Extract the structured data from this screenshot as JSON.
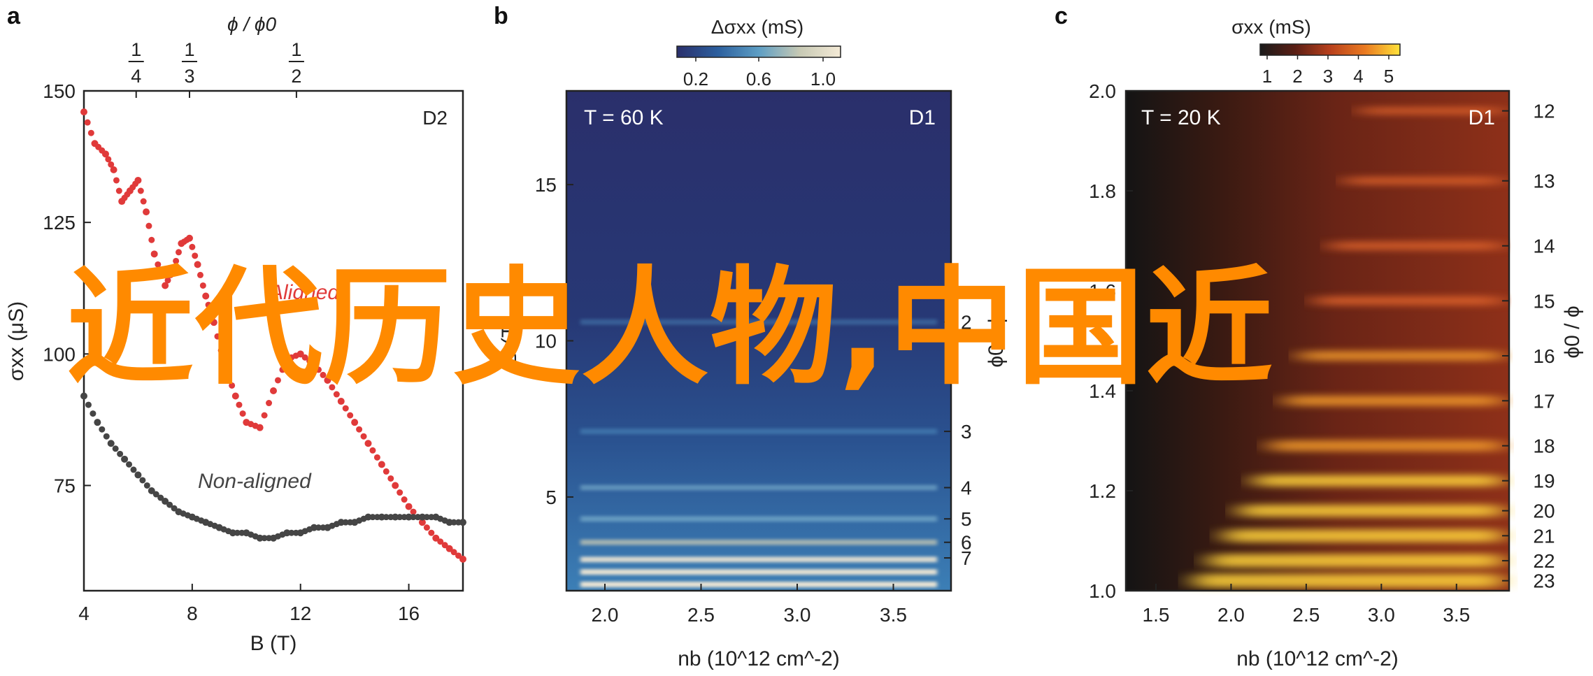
{
  "overlay_text": "近代历史人物,中国近",
  "chart_data": [
    {
      "panel": "a",
      "type": "line",
      "badge": "D2",
      "xlabel": "B (T)",
      "ylabel": "σxx (μS)",
      "top_axis_label": "ϕ / ϕ0",
      "top_ticks": [
        {
          "x": 5.93,
          "num": "1",
          "den": "4"
        },
        {
          "x": 7.9,
          "num": "1",
          "den": "3"
        },
        {
          "x": 11.85,
          "num": "1",
          "den": "2"
        }
      ],
      "xlim": [
        4,
        18
      ],
      "ylim": [
        55,
        150
      ],
      "xticks": [
        4,
        8,
        12,
        16
      ],
      "yticks": [
        75,
        100,
        125,
        150
      ],
      "series": [
        {
          "name": "Aligned",
          "color": "#e03a3a",
          "x": [
            4.0,
            4.4,
            4.8,
            5.1,
            5.4,
            5.7,
            6.0,
            6.3,
            6.6,
            7.0,
            7.3,
            7.6,
            7.9,
            8.2,
            8.5,
            8.8,
            9.2,
            9.6,
            10.0,
            10.5,
            11.0,
            11.5,
            12.0,
            12.5,
            13.0,
            13.5,
            14.0,
            14.5,
            15.0,
            15.5,
            16.0,
            16.5,
            17.0,
            17.5,
            18.0
          ],
          "y": [
            146,
            140,
            138,
            135,
            129,
            131,
            133,
            127,
            119,
            113,
            116,
            121,
            122,
            117,
            111,
            106,
            98,
            92,
            87,
            86,
            93,
            99,
            100,
            98,
            95,
            91,
            87,
            83,
            79,
            75,
            71,
            68,
            65,
            63,
            61
          ]
        },
        {
          "name": "Non-aligned",
          "color": "#454545",
          "x": [
            4.0,
            4.5,
            5.0,
            5.5,
            6.0,
            6.5,
            7.0,
            7.5,
            8.0,
            8.5,
            9.0,
            9.5,
            10.0,
            10.5,
            11.0,
            11.5,
            12.0,
            12.5,
            13.0,
            13.5,
            14.0,
            14.5,
            15.0,
            15.5,
            16.0,
            16.5,
            17.0,
            17.5,
            18.0
          ],
          "y": [
            92,
            87,
            83,
            80,
            77,
            74,
            72,
            70,
            69,
            68,
            67,
            66,
            66,
            65,
            65,
            66,
            66,
            67,
            67,
            68,
            68,
            69,
            69,
            69,
            69,
            69,
            69,
            68,
            68
          ]
        }
      ]
    },
    {
      "panel": "b",
      "type": "heatmap",
      "badge": "D1",
      "temp_label": "T = 60 K",
      "colorbar_label": "Δσxx (mS)",
      "colorbar_ticks": [
        "0.2",
        "0.6",
        "1.0"
      ],
      "colorbar_colors": [
        "#2a2f6b",
        "#2c5f9e",
        "#5d9ec4",
        "#c7c9b4",
        "#f4ead6"
      ],
      "xlabel": "nb (10^12 cm^-2)",
      "ylabel": "B (T)",
      "right_axis_label": "ϕ0 / ϕ",
      "xlim": [
        1.8,
        3.8
      ],
      "ylim": [
        2.0,
        18.0
      ],
      "xticks": [
        "2.0",
        "2.5",
        "3.0",
        "3.5"
      ],
      "yticks": [
        "5",
        "10",
        "15"
      ],
      "right_ticks": [
        {
          "B": 10.6,
          "label": "2"
        },
        {
          "B": 7.1,
          "label": "3"
        },
        {
          "B": 5.3,
          "label": "4"
        },
        {
          "B": 4.3,
          "label": "5"
        },
        {
          "B": 3.55,
          "label": "6"
        },
        {
          "B": 3.05,
          "label": "7"
        }
      ],
      "stripes_B": [
        2.2,
        2.6,
        3.0,
        3.55,
        4.3,
        5.3,
        7.1,
        10.6
      ],
      "stripe_strength": [
        1.0,
        0.95,
        0.85,
        0.65,
        0.5,
        0.4,
        0.3,
        0.15
      ]
    },
    {
      "panel": "c",
      "type": "heatmap",
      "badge": "D1",
      "temp_label": "T = 20 K",
      "colorbar_label": "σxx (mS)",
      "colorbar_ticks": [
        "1",
        "2",
        "3",
        "4",
        "5"
      ],
      "colorbar_colors": [
        "#1a1a1a",
        "#5a1e14",
        "#b8401c",
        "#ea7a20",
        "#ffe23a"
      ],
      "xlabel": "nb (10^12 cm^-2)",
      "ylabel": "",
      "right_axis_label": "ϕ0 / ϕ",
      "xlim": [
        1.3,
        3.85
      ],
      "ylim": [
        1.0,
        2.0
      ],
      "xticks": [
        "1.5",
        "2.0",
        "2.5",
        "3.0",
        "3.5"
      ],
      "yticks": [
        "1.0",
        "1.2",
        "1.4",
        "1.6",
        "1.8",
        "2.0"
      ],
      "right_ticks": [
        "12",
        "13",
        "14",
        "15",
        "16",
        "17",
        "18",
        "19",
        "20",
        "21",
        "22",
        "23"
      ],
      "stripes_y": [
        1.96,
        1.82,
        1.69,
        1.58,
        1.47,
        1.38,
        1.29,
        1.22,
        1.16,
        1.11,
        1.06,
        1.02
      ]
    }
  ]
}
